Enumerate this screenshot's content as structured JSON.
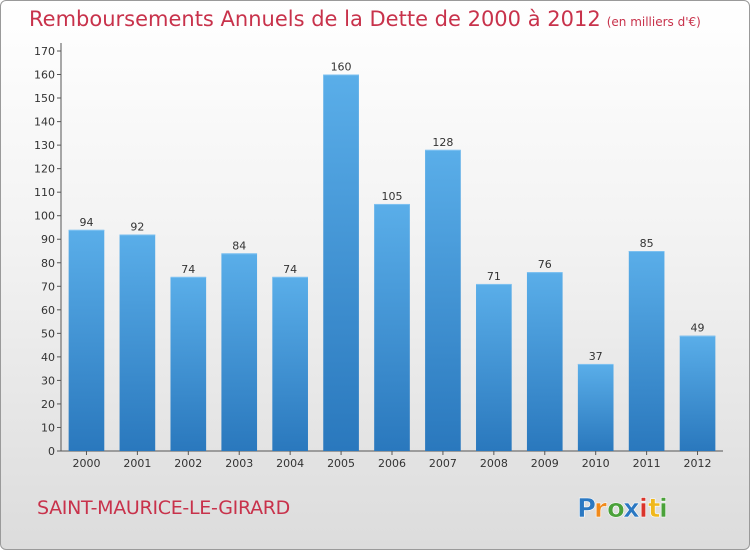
{
  "chart_data": {
    "type": "bar",
    "title": "Remboursements Annuels de la Dette de 2000 à 2012",
    "subtitle": "(en milliers d'€)",
    "categories": [
      "2000",
      "2001",
      "2002",
      "2003",
      "2004",
      "2005",
      "2006",
      "2007",
      "2008",
      "2009",
      "2010",
      "2011",
      "2012"
    ],
    "values": [
      94,
      92,
      74,
      84,
      74,
      160,
      105,
      128,
      71,
      76,
      37,
      85,
      49
    ],
    "ylim": [
      0,
      170
    ],
    "ytick_step": 10,
    "grid": false,
    "bar_color": "#3d8fd6",
    "xlabel": "",
    "ylabel": ""
  },
  "commune": "SAINT-MAURICE-LE-GIRARD",
  "brand": {
    "name": "Proxiti",
    "letters": [
      "P",
      "r",
      "o",
      "x",
      "i",
      "t",
      "i"
    ],
    "colors": [
      "#2b78c2",
      "#f08a1c",
      "#4aa13a",
      "#2b78c2",
      "#d9342b",
      "#f0b81c",
      "#4aa13a"
    ]
  }
}
